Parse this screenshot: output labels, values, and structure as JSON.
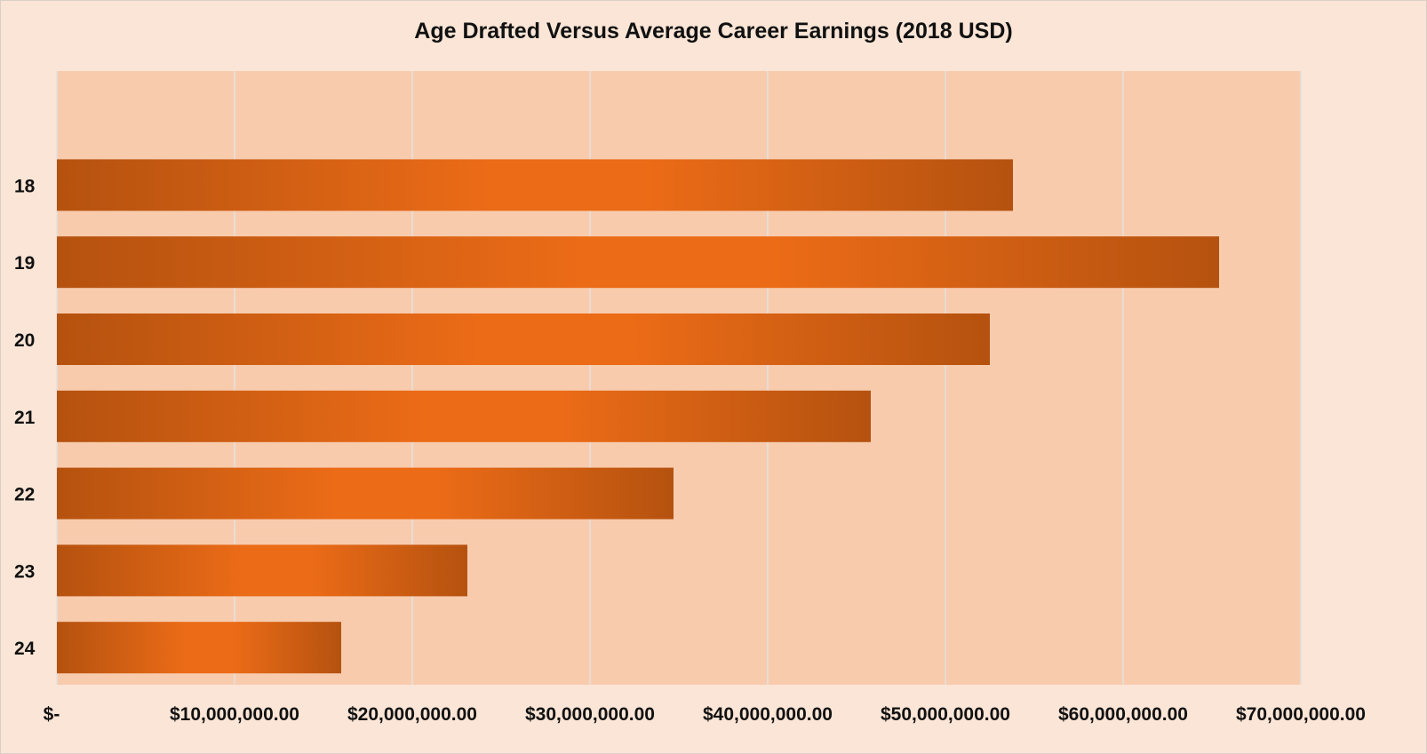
{
  "chart_data": {
    "type": "bar",
    "orientation": "horizontal",
    "title": "Age Drafted Versus Average Career Earnings (2018 USD)",
    "xlabel": "",
    "ylabel": "",
    "categories": [
      "18",
      "19",
      "20",
      "21",
      "22",
      "23",
      "24"
    ],
    "values": [
      53800000,
      65400000,
      52500000,
      45800000,
      34700000,
      23100000,
      16000000
    ],
    "xlim": [
      0,
      70000000
    ],
    "x_ticks": [
      0,
      10000000,
      20000000,
      30000000,
      40000000,
      50000000,
      60000000,
      70000000
    ],
    "x_tick_labels": [
      "$-",
      "$10,000,000.00",
      "$20,000,000.00",
      "$30,000,000.00",
      "$40,000,000.00",
      "$50,000,000.00",
      "$60,000,000.00",
      "$70,000,000.00"
    ],
    "grid": "vertical",
    "legend": "none",
    "colors": {
      "background": "#fbe5d6",
      "plot_area": "#f8cbad",
      "bar_edge": "#b5520f",
      "bar_center": "#eb6b17",
      "gridline": "#e2e2e2"
    }
  }
}
